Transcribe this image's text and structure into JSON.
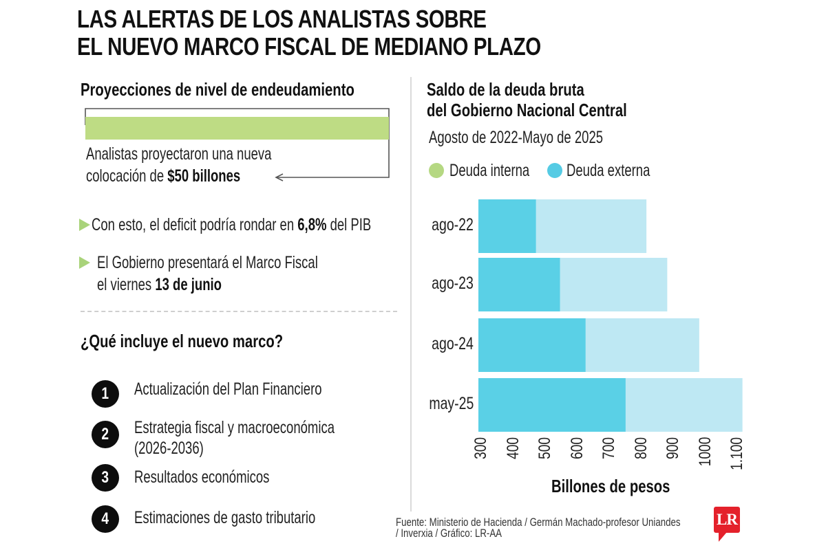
{
  "title": {
    "line1": "LAS ALERTAS DE LOS ANALISTAS SOBRE",
    "line2": "EL NUEVO MARCO FISCAL DE MEDIANO PLAZO"
  },
  "left": {
    "projection_title": "Proyecciones de nivel de endeudamiento",
    "projection_line1": "Analistas proyectaron una nueva",
    "projection_line2_pre": "colocación de ",
    "projection_line2_bold": "$50 billones",
    "projection_bar_color": "#bedc84",
    "bullets": [
      {
        "pre": "Con esto, el deficit podría rondar en ",
        "bold": "6,8%",
        "post": " del PIB"
      },
      {
        "line1": "El Gobierno presentará el Marco Fiscal",
        "line2_pre": "el viernes ",
        "line2_bold": "13 de junio"
      }
    ],
    "bullet_color": "#a9d37a",
    "list_title": "¿Qué incluye el nuevo marco?",
    "list_items": [
      {
        "num": "1",
        "text": "Actualización del Plan Financiero"
      },
      {
        "num": "2",
        "text": "Estrategia fiscal y macroeconómica",
        "text2": "(2026-2036)"
      },
      {
        "num": "3",
        "text": "Resultados económicos"
      },
      {
        "num": "4",
        "text": "Estimaciones de gasto tributario"
      }
    ]
  },
  "chart_data": {
    "type": "bar",
    "orientation": "horizontal",
    "stacked": true,
    "title": "Saldo de la deuda bruta del Gobierno Nacional Central",
    "title_line1": "Saldo de la deuda bruta",
    "title_line2": "del Gobierno Nacional Central",
    "subtitle": "Agosto de 2022-Mayo de 2025",
    "xlabel": "Billones de pesos",
    "ylabel": "",
    "categories": [
      "ago-22",
      "ago-23",
      "ago-24",
      "may-25"
    ],
    "series": [
      {
        "name": "Deuda interna",
        "legend_color": "#b5d882",
        "bar_color": "#5ad0e6",
        "values": [
          480,
          555,
          635,
          760
        ]
      },
      {
        "name": "Deuda externa",
        "legend_color": "#55cbe4",
        "bar_color": "#bee8f3",
        "values": [
          825,
          890,
          990,
          1125
        ],
        "value_is_cumulative_total": true
      }
    ],
    "xlim": [
      300,
      1100
    ],
    "xticks": [
      "300",
      "400",
      "500",
      "600",
      "700",
      "800",
      "900",
      "1000",
      "1.100"
    ],
    "xtick_values": [
      300,
      400,
      500,
      600,
      700,
      800,
      900,
      1000,
      1100
    ],
    "grid": false,
    "legend_position": "top"
  },
  "footer": {
    "source_line1": "Fuente:  Ministerio de Hacienda / Germán Machado-profesor Uniandes",
    "source_line2": "/ Inverxia / Gráfico: LR-AA",
    "logo_text": "LR",
    "logo_color": "#e4212b"
  }
}
